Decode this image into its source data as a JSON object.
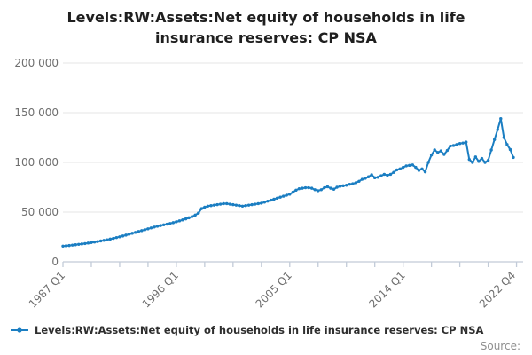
{
  "title": "Levels:RW:Assets:Net equity of households in life insurance reserves: CP NSA",
  "legend": {
    "label": "Levels:RW:Assets:Net equity of households in life insurance reserves: CP NSA",
    "marker": "line-with-dot"
  },
  "source_label": "Source:",
  "colors": {
    "line": "#1b7ec2",
    "grid": "#e5e5e5",
    "axis": "#c2cbd8",
    "tick_label": "#6f6f6f",
    "title_text": "#1f1f1f",
    "legend_text": "#2e2e2e",
    "source_text": "#8f8f8f"
  },
  "chart_data": {
    "type": "line",
    "title": "Levels:RW:Assets:Net equity of households in life insurance reserves: CP NSA",
    "xlabel": "",
    "ylabel": "",
    "x_start": "1987 Q1",
    "x_end": "2022 Q4",
    "frequency": "quarterly",
    "ylim": [
      0,
      200000
    ],
    "grid": "horizontal",
    "legend_position": "bottom-left",
    "marker": "circle",
    "y_ticks": [
      0,
      50000,
      100000,
      150000,
      200000
    ],
    "y_tick_labels": [
      "0",
      "50 000",
      "100 000",
      "150 000",
      "200 000"
    ],
    "x_tick_labels": [
      "1987 Q1",
      "1996 Q1",
      "2005 Q1",
      "2014 Q1",
      "2022 Q4"
    ],
    "x_tick_indices": [
      0,
      36,
      72,
      108,
      143
    ],
    "minor_tick_every_quarters": 9,
    "series": [
      {
        "name": "Levels:RW:Assets:Net equity of households in life insurance reserves: CP NSA",
        "values": [
          15800,
          16100,
          16400,
          16800,
          17200,
          17600,
          18000,
          18400,
          18900,
          19400,
          19900,
          20400,
          21000,
          21600,
          22200,
          22900,
          23600,
          24400,
          25200,
          26000,
          26900,
          27800,
          28700,
          29600,
          30500,
          31400,
          32300,
          33200,
          34100,
          35000,
          35800,
          36500,
          37200,
          37900,
          38600,
          39400,
          40300,
          41200,
          42200,
          43200,
          44300,
          45500,
          47000,
          49000,
          53500,
          55000,
          56000,
          56500,
          57000,
          57500,
          58000,
          58500,
          58500,
          58000,
          57500,
          57000,
          56500,
          56000,
          56500,
          57000,
          57500,
          58000,
          58500,
          59000,
          60000,
          61000,
          62000,
          63000,
          64000,
          65000,
          66000,
          67000,
          68000,
          70000,
          72000,
          73500,
          74000,
          74500,
          74500,
          74000,
          72500,
          71500,
          72500,
          74500,
          75500,
          74000,
          73000,
          75000,
          76000,
          76500,
          77000,
          78000,
          78500,
          79500,
          81000,
          83000,
          84000,
          85500,
          87500,
          84500,
          85000,
          86500,
          88000,
          87000,
          88000,
          90000,
          92500,
          93500,
          95000,
          96500,
          97000,
          97500,
          95000,
          92000,
          93500,
          90500,
          100000,
          107500,
          112500,
          110000,
          111500,
          108000,
          112000,
          116500,
          117000,
          118000,
          119000,
          119500,
          120500,
          103000,
          100000,
          105500,
          101000,
          104000,
          100000,
          102000,
          112500,
          123000,
          133000,
          144000,
          125000,
          118000,
          113000,
          105000
        ]
      }
    ]
  }
}
